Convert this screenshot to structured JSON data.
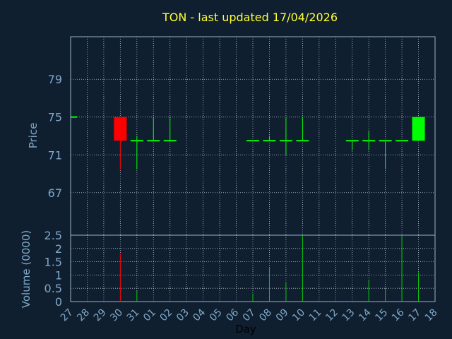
{
  "chart_data": {
    "type": "candlestick",
    "title": "TON - last updated 17/04/2026",
    "xlabel": "Day",
    "colors": {
      "background": "#0f1f30",
      "frame": "#9ab0c8",
      "grid": "#c0c8d0",
      "text": "#7fa8c8",
      "title": "#ffff33",
      "up": "#00ff00",
      "down": "#ff0000",
      "volume": "#00cc00"
    },
    "x_tick_labels": [
      "27",
      "28",
      "29",
      "30",
      "31",
      "01",
      "02",
      "03",
      "04",
      "05",
      "06",
      "07",
      "08",
      "09",
      "10",
      "11",
      "12",
      "13",
      "14",
      "15",
      "16",
      "17",
      "18"
    ],
    "price_panel": {
      "ylabel": "Price",
      "ylim": [
        62.5,
        83.5
      ],
      "yticks": [
        67,
        71,
        75,
        79
      ],
      "grid": true
    },
    "volume_panel": {
      "ylabel": "Volume (0000)",
      "ylim": [
        0,
        2.5
      ],
      "yticks": [
        "0",
        "0.5",
        "1",
        "1.5",
        "2",
        "2.5"
      ],
      "grid": true
    },
    "candles": [
      {
        "day": "27",
        "x": 0,
        "open": 75.0,
        "high": 75.0,
        "low": 75.0,
        "close": 75.0,
        "volume": 0
      },
      {
        "day": "30",
        "x": 3,
        "open": 75.0,
        "high": 75.0,
        "low": 69.5,
        "close": 72.5,
        "volume": 1.8
      },
      {
        "day": "31",
        "x": 4,
        "open": 72.5,
        "high": 73.0,
        "low": 69.5,
        "close": 72.5,
        "volume": 0.4
      },
      {
        "day": "01",
        "x": 5,
        "open": 72.5,
        "high": 75.0,
        "low": 72.5,
        "close": 72.5,
        "volume": 0
      },
      {
        "day": "02",
        "x": 6,
        "open": 72.5,
        "high": 75.0,
        "low": 72.5,
        "close": 72.5,
        "volume": 0
      },
      {
        "day": "07",
        "x": 11,
        "open": 72.5,
        "high": 72.5,
        "low": 72.5,
        "close": 72.5,
        "volume": 0.3
      },
      {
        "day": "08",
        "x": 12,
        "open": 72.5,
        "high": 73.0,
        "low": 72.5,
        "close": 72.5,
        "volume": 1.3
      },
      {
        "day": "09",
        "x": 13,
        "open": 72.5,
        "high": 75.0,
        "low": 71.0,
        "close": 72.5,
        "volume": 0.7
      },
      {
        "day": "10",
        "x": 14,
        "open": 72.5,
        "high": 75.0,
        "low": 72.5,
        "close": 72.5,
        "volume": 2.5
      },
      {
        "day": "13",
        "x": 17,
        "open": 72.5,
        "high": 72.5,
        "low": 71.5,
        "close": 72.5,
        "volume": 0
      },
      {
        "day": "14",
        "x": 18,
        "open": 72.5,
        "high": 73.5,
        "low": 71.5,
        "close": 72.5,
        "volume": 0.8
      },
      {
        "day": "15",
        "x": 19,
        "open": 72.5,
        "high": 72.5,
        "low": 69.5,
        "close": 72.5,
        "volume": 0.5
      },
      {
        "day": "16",
        "x": 20,
        "open": 72.5,
        "high": 72.5,
        "low": 72.5,
        "close": 72.5,
        "volume": 2.5
      },
      {
        "day": "17",
        "x": 21,
        "open": 72.5,
        "high": 75.0,
        "low": 72.5,
        "close": 75.0,
        "volume": 1.1
      }
    ]
  }
}
